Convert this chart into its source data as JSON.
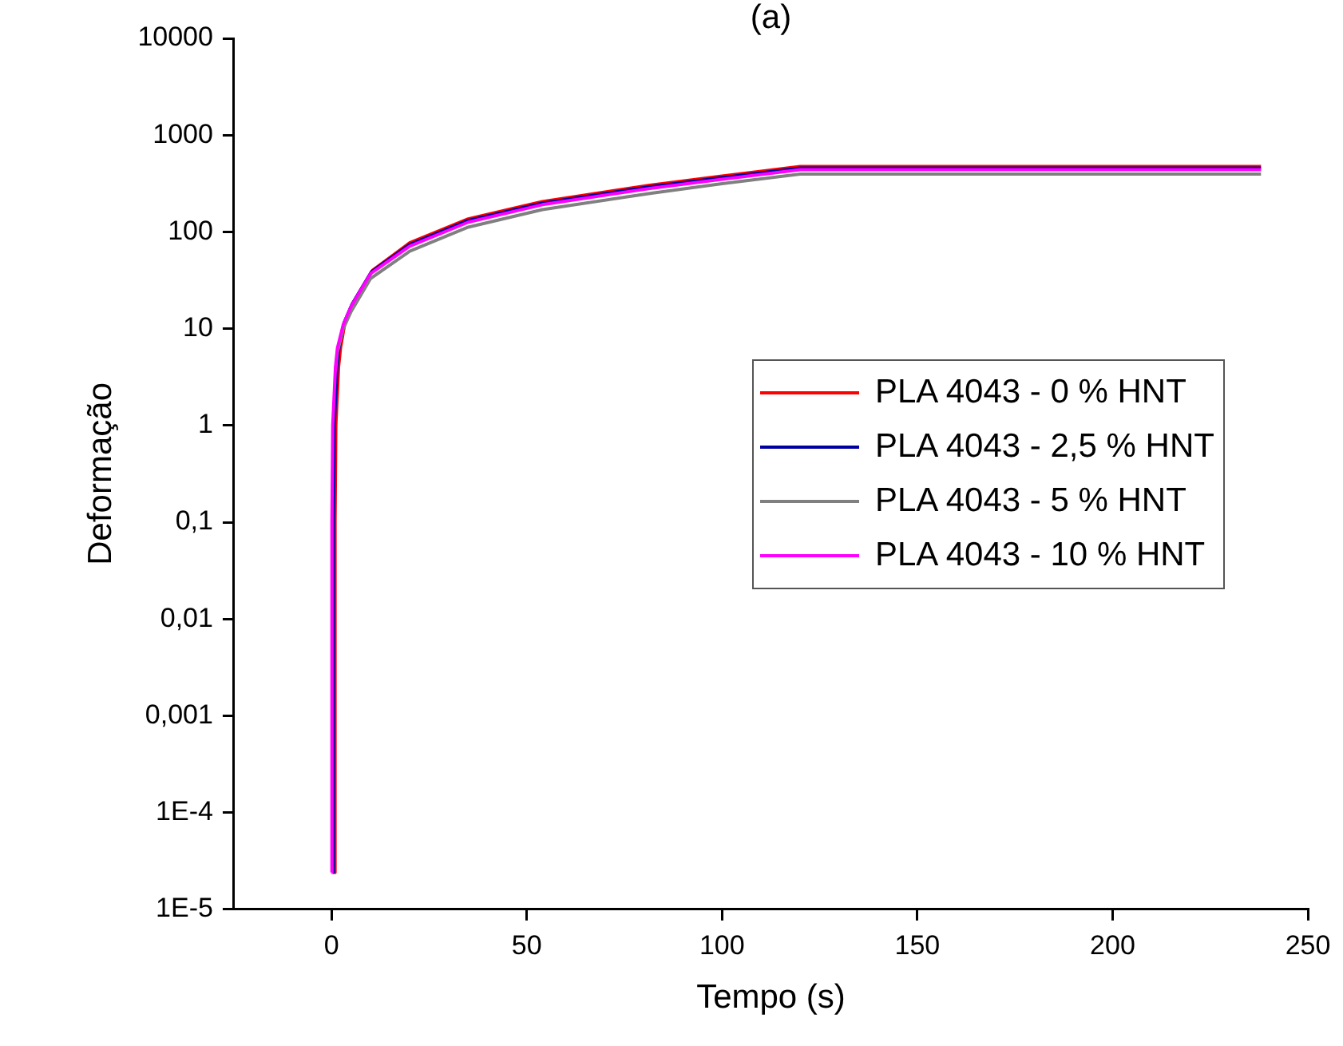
{
  "chart_data": {
    "type": "line",
    "title": "(a)",
    "xlabel": "Tempo (s)",
    "ylabel": "Deformação",
    "x": [
      0,
      0.1,
      0.3,
      1,
      1.5,
      3,
      5,
      10,
      20,
      35,
      54,
      81.5,
      100,
      120,
      238
    ],
    "series": [
      {
        "name": "PLA 4043 - 0 % HNT",
        "color": "#ff0000",
        "x": [
          0.8,
          0.9,
          1.1,
          1.8,
          2.3,
          3.5,
          5.5,
          10.5,
          20,
          35,
          54,
          81.5,
          100,
          120,
          238
        ],
        "values": [
          2.4e-05,
          0.1,
          1,
          4,
          6.3,
          12,
          18.5,
          40,
          77,
          136,
          206,
          304,
          378,
          475,
          475
        ]
      },
      {
        "name": "PLA 4043 - 2,5 % HNT",
        "color": "#0000a0",
        "x": [
          0.4,
          0.5,
          0.7,
          1.4,
          1.9,
          3.2,
          5.2,
          10.2,
          20,
          35,
          54,
          81.5,
          100,
          120,
          238
        ],
        "values": [
          2.4e-05,
          0.1,
          1,
          4,
          6.3,
          11.5,
          17.7,
          38.5,
          74,
          131,
          198,
          292,
          364,
          457,
          457
        ]
      },
      {
        "name": "PLA 4043 - 5 % HNT",
        "color": "#808080",
        "values": [
          null,
          null,
          null,
          3.6,
          5.7,
          10,
          15,
          33,
          63,
          112,
          170,
          250,
          315,
          395,
          395
        ]
      },
      {
        "name": "PLA 4043 - 10 % HNT",
        "color": "#ff00ff",
        "values": [
          2.4e-05,
          0.1,
          1,
          4,
          6.3,
          11,
          17,
          37,
          71,
          126,
          191,
          281,
          350,
          440,
          440
        ]
      }
    ],
    "xlim": [
      -25,
      250
    ],
    "xticks": [
      0,
      50,
      100,
      150,
      200,
      250
    ],
    "ylim": [
      1e-05,
      10000
    ],
    "log": "y",
    "yticks": [
      {
        "value": 1e-05,
        "label": "1E-5"
      },
      {
        "value": 0.0001,
        "label": "1E-4"
      },
      {
        "value": 0.001,
        "label": "0,001"
      },
      {
        "value": 0.01,
        "label": "0,01"
      },
      {
        "value": 0.1,
        "label": "0,1"
      },
      1,
      10,
      100,
      1000,
      10000
    ],
    "grid": false,
    "legend": "right",
    "marker": "none",
    "line_style": "solid"
  }
}
